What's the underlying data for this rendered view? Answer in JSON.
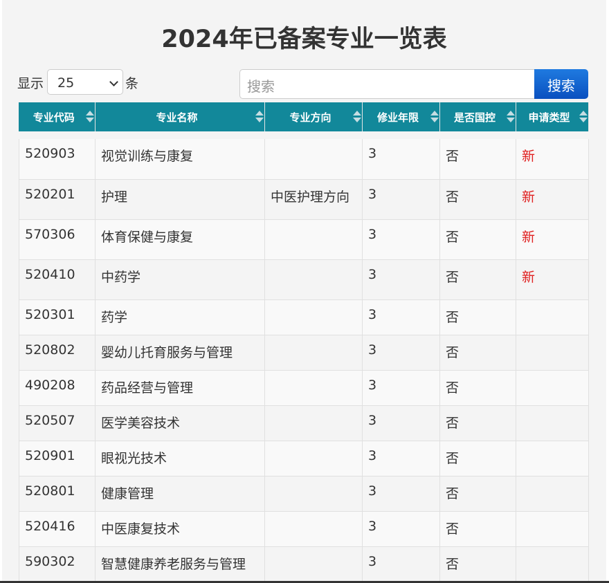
{
  "header": {
    "title": "2024年已备案专业一览表"
  },
  "controls": {
    "show_label": "显示",
    "page_size": "25",
    "unit_label": "条",
    "search_placeholder": "搜索",
    "search_button": "搜索"
  },
  "table": {
    "columns": [
      "专业代码",
      "专业名称",
      "专业方向",
      "修业年限",
      "是否国控",
      "申请类型"
    ],
    "rows": [
      [
        "520903",
        "视觉训练与康复",
        null,
        "3",
        "否",
        "新"
      ],
      [
        "520201",
        "护理",
        "中医护理方向",
        "3",
        "否",
        "新"
      ],
      [
        "570306",
        "体育保健与康复",
        null,
        "3",
        "否",
        "新"
      ],
      [
        "520410",
        "中药学",
        null,
        "3",
        "否",
        "新"
      ],
      [
        "520301",
        "药学",
        null,
        "3",
        "否",
        null
      ],
      [
        "520802",
        "婴幼儿托育服务与管理",
        null,
        "3",
        "否",
        null
      ],
      [
        "490208",
        "药品经营与管理",
        null,
        "3",
        "否",
        null
      ],
      [
        "520507",
        "医学美容技术",
        null,
        "3",
        "否",
        null
      ],
      [
        "520901",
        "眼视光技术",
        null,
        "3",
        "否",
        null
      ],
      [
        "520801",
        "健康管理",
        null,
        "3",
        "否",
        null
      ],
      [
        "520416",
        "中医康复技术",
        null,
        "3",
        "否",
        null
      ],
      [
        "590302",
        "智慧健康养老服务与管理",
        null,
        "3",
        "否",
        null
      ]
    ]
  }
}
